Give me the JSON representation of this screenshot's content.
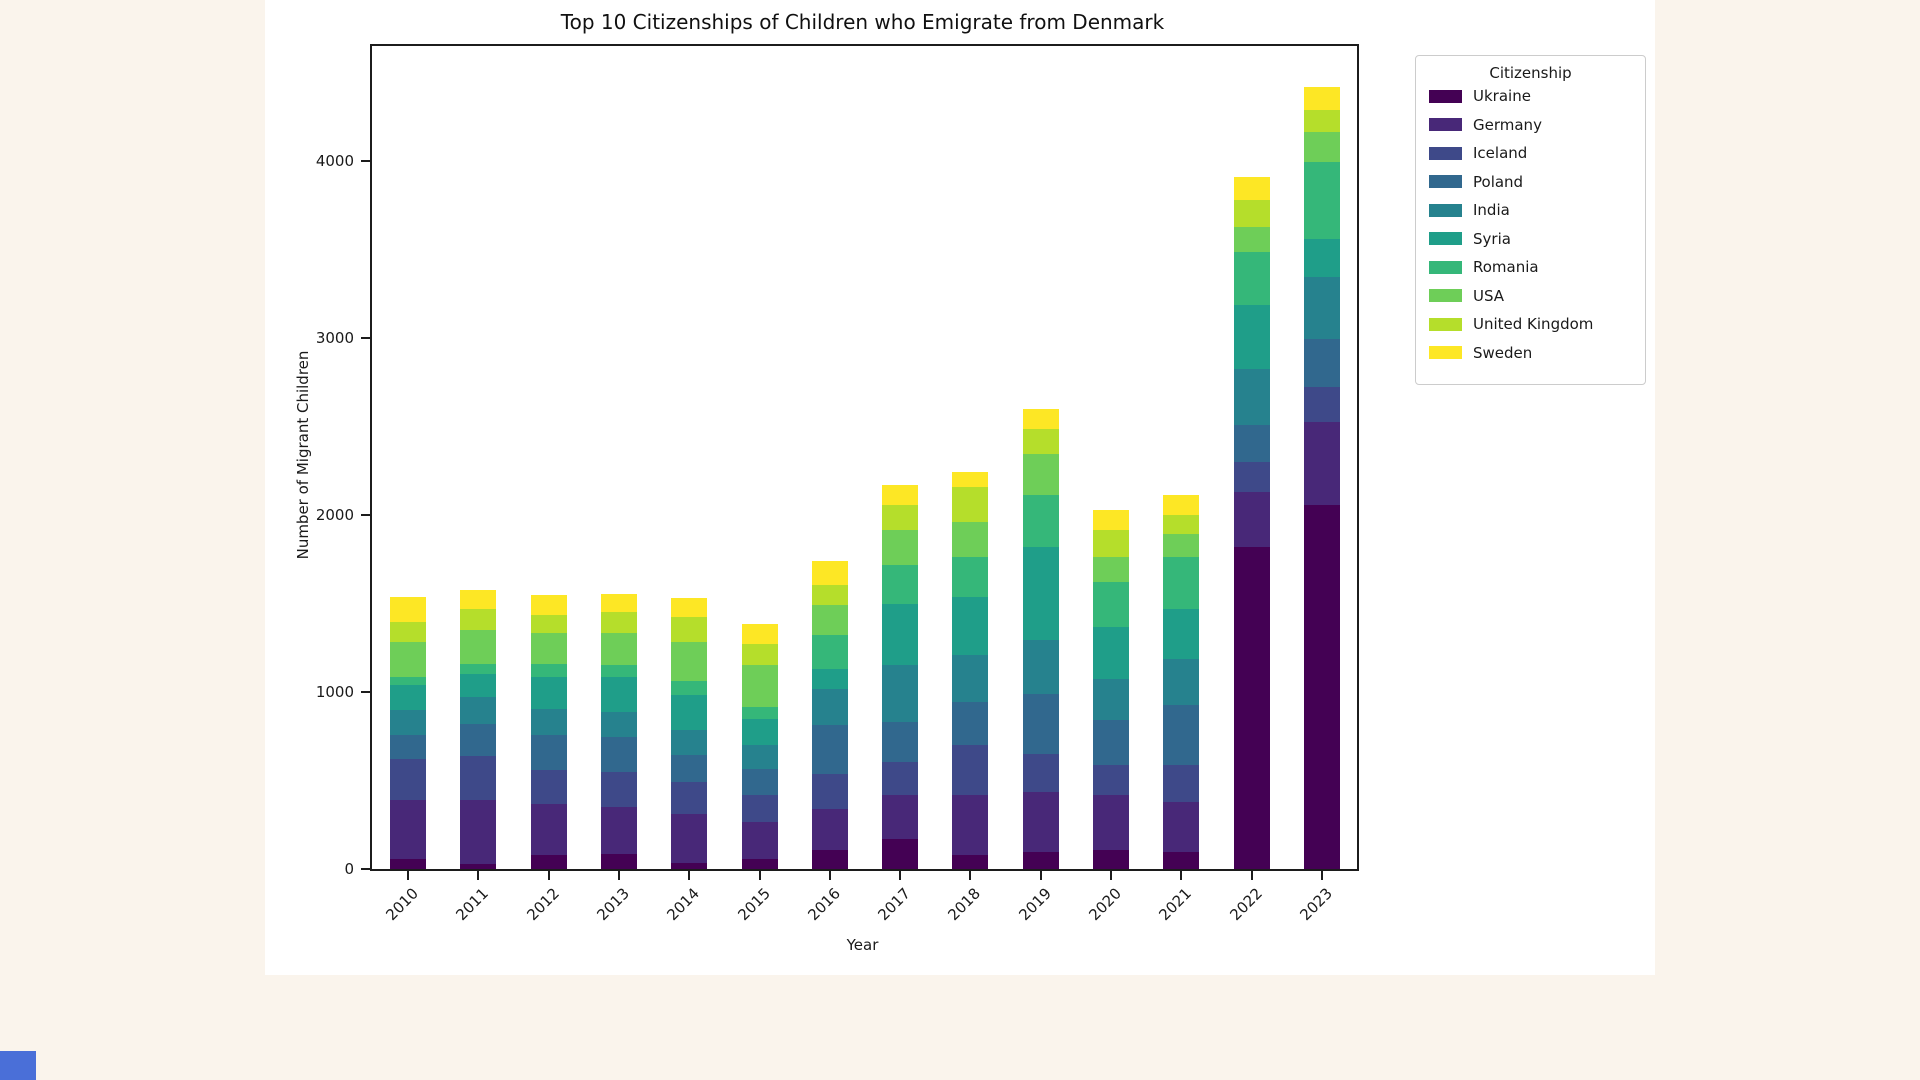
{
  "page": {
    "background_color": "#faf4ec",
    "figure_background": "#ffffff",
    "corner_accent_color": "#4a6fd8"
  },
  "chart_data": {
    "type": "bar",
    "stacked": true,
    "title": "Top 10 Citizenships of Children who Emigrate from Denmark",
    "xlabel": "Year",
    "ylabel": "Number of Migrant Children",
    "grid": false,
    "legend": {
      "title": "Citizenship",
      "position": "outside-upper-right"
    },
    "categories": [
      "2010",
      "2011",
      "2012",
      "2013",
      "2014",
      "2015",
      "2016",
      "2017",
      "2018",
      "2019",
      "2020",
      "2021",
      "2022",
      "2023"
    ],
    "yticks": [
      0,
      1000,
      2000,
      3000,
      4000
    ],
    "ylim": [
      0,
      4650
    ],
    "series": [
      {
        "name": "Ukraine",
        "color": "#440154",
        "values": [
          58,
          30,
          79,
          85,
          35,
          56,
          105,
          170,
          80,
          96,
          107,
          97,
          1820,
          2056
        ]
      },
      {
        "name": "Germany",
        "color": "#482878",
        "values": [
          330,
          360,
          289,
          265,
          274,
          210,
          235,
          248,
          340,
          339,
          311,
          283,
          310,
          469
        ]
      },
      {
        "name": "Iceland",
        "color": "#3e4989",
        "values": [
          235,
          249,
          193,
          196,
          185,
          152,
          198,
          187,
          280,
          217,
          170,
          208,
          170,
          198
        ]
      },
      {
        "name": "Poland",
        "color": "#31688e",
        "values": [
          132,
          180,
          195,
          200,
          150,
          147,
          274,
          226,
          244,
          339,
          254,
          341,
          209,
          272
        ]
      },
      {
        "name": "India",
        "color": "#26828e",
        "values": [
          141,
          153,
          150,
          141,
          141,
          133,
          206,
          322,
          265,
          301,
          232,
          260,
          316,
          350
        ]
      },
      {
        "name": "Syria",
        "color": "#1f9e89",
        "values": [
          141,
          130,
          179,
          198,
          198,
          150,
          113,
          344,
          328,
          528,
          293,
          280,
          362,
          215
        ]
      },
      {
        "name": "Romania",
        "color": "#35b779",
        "values": [
          48,
          56,
          74,
          65,
          79,
          67,
          190,
          220,
          226,
          294,
          255,
          294,
          300,
          435
        ]
      },
      {
        "name": "USA",
        "color": "#6ece58",
        "values": [
          198,
          192,
          172,
          181,
          221,
          235,
          169,
          198,
          198,
          232,
          141,
          130,
          141,
          169
        ]
      },
      {
        "name": "United Kingdom",
        "color": "#b5de2b",
        "values": [
          113,
          119,
          103,
          121,
          141,
          122,
          116,
          141,
          197,
          141,
          152,
          107,
          153,
          124
        ]
      },
      {
        "name": "Sweden",
        "color": "#fde725",
        "values": [
          141,
          107,
          114,
          102,
          107,
          111,
          134,
          114,
          85,
          113,
          113,
          113,
          130,
          130
        ]
      }
    ],
    "totals_by_year": [
      1537,
      1576,
      1548,
      1554,
      1531,
      1383,
      1740,
      2170,
      2243,
      2600,
      2028,
      2113,
      3911,
      4418
    ]
  }
}
